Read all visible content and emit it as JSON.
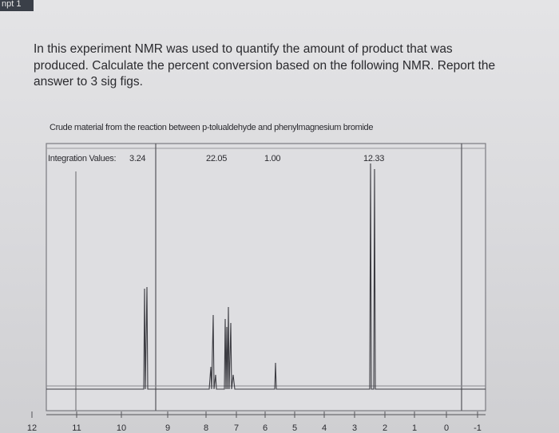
{
  "header": {
    "tab": "npt 1"
  },
  "question": {
    "lines": [
      "In this experiment NMR was used to quantify the amount of product that was",
      "produced. Calculate the percent conversion based on the following NMR. Report the",
      "answer to 3 sig figs."
    ]
  },
  "spectrum": {
    "caption": "Crude material from the reaction between p-tolualdehyde and phenylmagnesium bromide",
    "integration_label": "Integration Values:",
    "integration_values": [
      "3.24",
      "22.05",
      "1.00",
      "12.33"
    ],
    "axis_labels": [
      "12",
      "11",
      "10",
      "9",
      "8",
      "7",
      "6",
      "5",
      "4",
      "3",
      "2",
      "1",
      "0",
      "-1"
    ]
  }
}
